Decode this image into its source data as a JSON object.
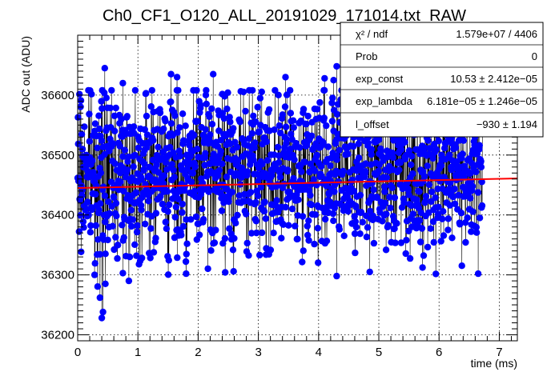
{
  "chart_data": {
    "type": "scatter",
    "title": "Ch0_CF1_O120_ALL_20191029_171014.txt_RAW",
    "xlabel": "time (ms)",
    "ylabel": "ADC out (ADU)",
    "xlim": [
      0,
      7.3
    ],
    "ylim": [
      36190,
      36700
    ],
    "xticks": [
      0,
      1,
      2,
      3,
      4,
      5,
      6,
      7
    ],
    "yticks": [
      36200,
      36300,
      36400,
      36500,
      36600
    ],
    "grid": true,
    "series": [
      {
        "style": "points-with-connecting-lines",
        "x_range": [
          0,
          6.72
        ],
        "y_typical": [
          36380,
          36560
        ],
        "y_min": 36228,
        "y_max": 36648,
        "colors": {
          "marker": "#0000ff",
          "line": "#000000"
        },
        "low_outliers": [
          {
            "x": 0.28,
            "y": 36300
          },
          {
            "x": 0.37,
            "y": 36262
          },
          {
            "x": 0.4,
            "y": 36228
          },
          {
            "x": 0.42,
            "y": 36238
          },
          {
            "x": 0.46,
            "y": 36285
          },
          {
            "x": 0.75,
            "y": 36303
          },
          {
            "x": 0.85,
            "y": 36290
          },
          {
            "x": 1.8,
            "y": 36302
          },
          {
            "x": 4.3,
            "y": 36298
          },
          {
            "x": 4.85,
            "y": 36305
          },
          {
            "x": 6.65,
            "y": 36302
          }
        ],
        "high_outliers": [
          {
            "x": 0.45,
            "y": 36645
          },
          {
            "x": 0.75,
            "y": 36620
          },
          {
            "x": 1.55,
            "y": 36635
          },
          {
            "x": 1.65,
            "y": 36630
          },
          {
            "x": 2.25,
            "y": 36635
          },
          {
            "x": 3.45,
            "y": 36630
          },
          {
            "x": 4.1,
            "y": 36628
          },
          {
            "x": 4.25,
            "y": 36625
          },
          {
            "x": 4.3,
            "y": 36648
          }
        ]
      },
      {
        "style": "fit-line",
        "x": [
          0,
          7.3
        ],
        "y": [
          36445,
          36461
        ],
        "colors": {
          "line": "#ff0000"
        }
      }
    ]
  },
  "stats_box": {
    "rows": [
      {
        "label": "χ² / ndf",
        "value": "1.579e+07 / 4406"
      },
      {
        "label": "Prob",
        "value": "0"
      },
      {
        "label": "exp_const",
        "value": "10.53 ± 2.412e−05"
      },
      {
        "label": "exp_lambda",
        "value": "6.181e−05 ± 1.246e−05"
      },
      {
        "label": "l_offset",
        "value": "−930 ± 1.194"
      }
    ]
  }
}
